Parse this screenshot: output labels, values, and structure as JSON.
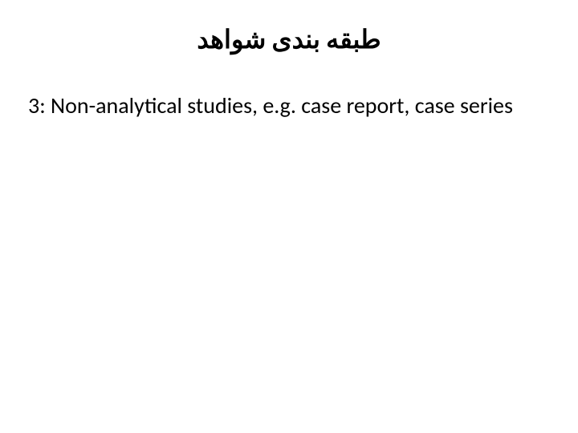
{
  "slide": {
    "title": "طبقه بندی شواهد",
    "body": "3: Non-analytical studies, e.g. case report, case series",
    "background_color": "#ffffff",
    "text_color": "#000000",
    "title_fontsize": 32,
    "body_fontsize": 28,
    "title_direction": "rtl",
    "body_direction": "ltr"
  }
}
